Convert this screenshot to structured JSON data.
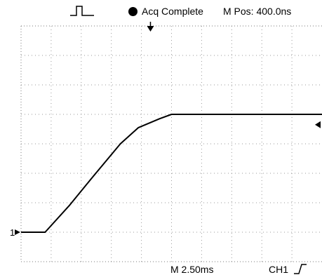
{
  "status_bar": {
    "trigger_icon": "pulse-trigger-icon",
    "acq_indicator_color": "#000000",
    "acq_status": "Acq Complete",
    "position": "M Pos: 400.0ns"
  },
  "bottom_bar": {
    "timebase": "M 2.50ms",
    "channel": "CH1"
  },
  "markers": {
    "channel_ground": "1",
    "trigger_position_icon": "down-arrow-icon",
    "trigger_level_icon": "left-arrow-icon",
    "edge_icon": "rising-edge-icon"
  },
  "display": {
    "divisions_x": 10,
    "divisions_y": 8,
    "grid_style": "dotted",
    "trace_color": "#000000",
    "background": "#ffffff"
  },
  "chart_data": {
    "type": "line",
    "x_unit": "divisions",
    "y_unit": "divisions",
    "xlim": [
      0,
      10
    ],
    "ylim": [
      0,
      8
    ],
    "series": [
      {
        "x": [
          0,
          0.8,
          1.6,
          2.4,
          3.3,
          3.9,
          4.6,
          5.0,
          5.5,
          10
        ],
        "y": [
          1.0,
          1.0,
          1.9,
          2.9,
          4.0,
          4.55,
          4.85,
          5.0,
          5.0,
          5.0
        ]
      }
    ]
  }
}
